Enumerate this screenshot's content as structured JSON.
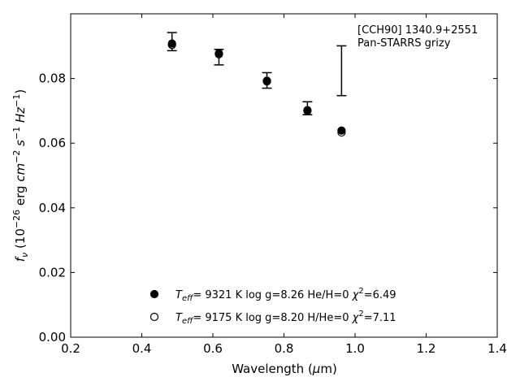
{
  "chart_data": {
    "type": "scatter",
    "xlabel": "Wavelength (μm)",
    "ylabel": "fν (10−26 erg cm−2 s−1 Hz−1)",
    "xlim": [
      0.2,
      1.4
    ],
    "ylim": [
      0.0,
      0.1
    ],
    "xticks": [
      0.2,
      0.4,
      0.6,
      0.8,
      1.0,
      1.2,
      1.4
    ],
    "yticks": [
      0.0,
      0.02,
      0.04,
      0.06,
      0.08
    ],
    "xtick_labels": [
      "0.2",
      "0.4",
      "0.6",
      "0.8",
      "1.0",
      "1.2",
      "1.4"
    ],
    "ytick_labels": [
      "0.00",
      "0.02",
      "0.04",
      "0.06",
      "0.08"
    ],
    "grid": false,
    "legend_position": "bottom-center",
    "annotation": [
      "[CCH90] 1340.9+2551",
      "Pan-STARRS grizy"
    ],
    "observed": {
      "x": [
        0.485,
        0.617,
        0.752,
        0.866,
        0.962
      ],
      "y": [
        0.0914,
        0.0866,
        0.0794,
        0.0708,
        0.0824
      ],
      "yerr": [
        0.0028,
        0.0024,
        0.0024,
        0.002,
        0.0077
      ],
      "color": "#000000"
    },
    "series": [
      {
        "name": "Teff= 9321 K log g=8.26 He/H=0 χ2=6.49",
        "marker": "filled-circle",
        "x": [
          0.485,
          0.617,
          0.752,
          0.866,
          0.962
        ],
        "y": [
          0.0908,
          0.0878,
          0.0793,
          0.0702,
          0.0639
        ]
      },
      {
        "name": "Teff= 9175 K log g=8.20 H/He=0 χ2=7.11",
        "marker": "open-circle",
        "x": [
          0.485,
          0.617,
          0.752,
          0.866,
          0.962
        ],
        "y": [
          0.0904,
          0.0875,
          0.0791,
          0.07,
          0.0633
        ]
      }
    ],
    "legend": [
      {
        "marker": "filled-circle",
        "teff_sym": "T",
        "teff_sub": "eff",
        "rest": "=  9321 K  log g=8.26  He/H=0  ",
        "chi": "χ",
        "chi_sup": "2",
        "chi_val": "=6.49"
      },
      {
        "marker": "open-circle",
        "teff_sym": "T",
        "teff_sub": "eff",
        "rest": "=  9175 K  log g=8.20  H/He=0  ",
        "chi": "χ",
        "chi_sup": "2",
        "chi_val": "=7.11"
      }
    ]
  }
}
